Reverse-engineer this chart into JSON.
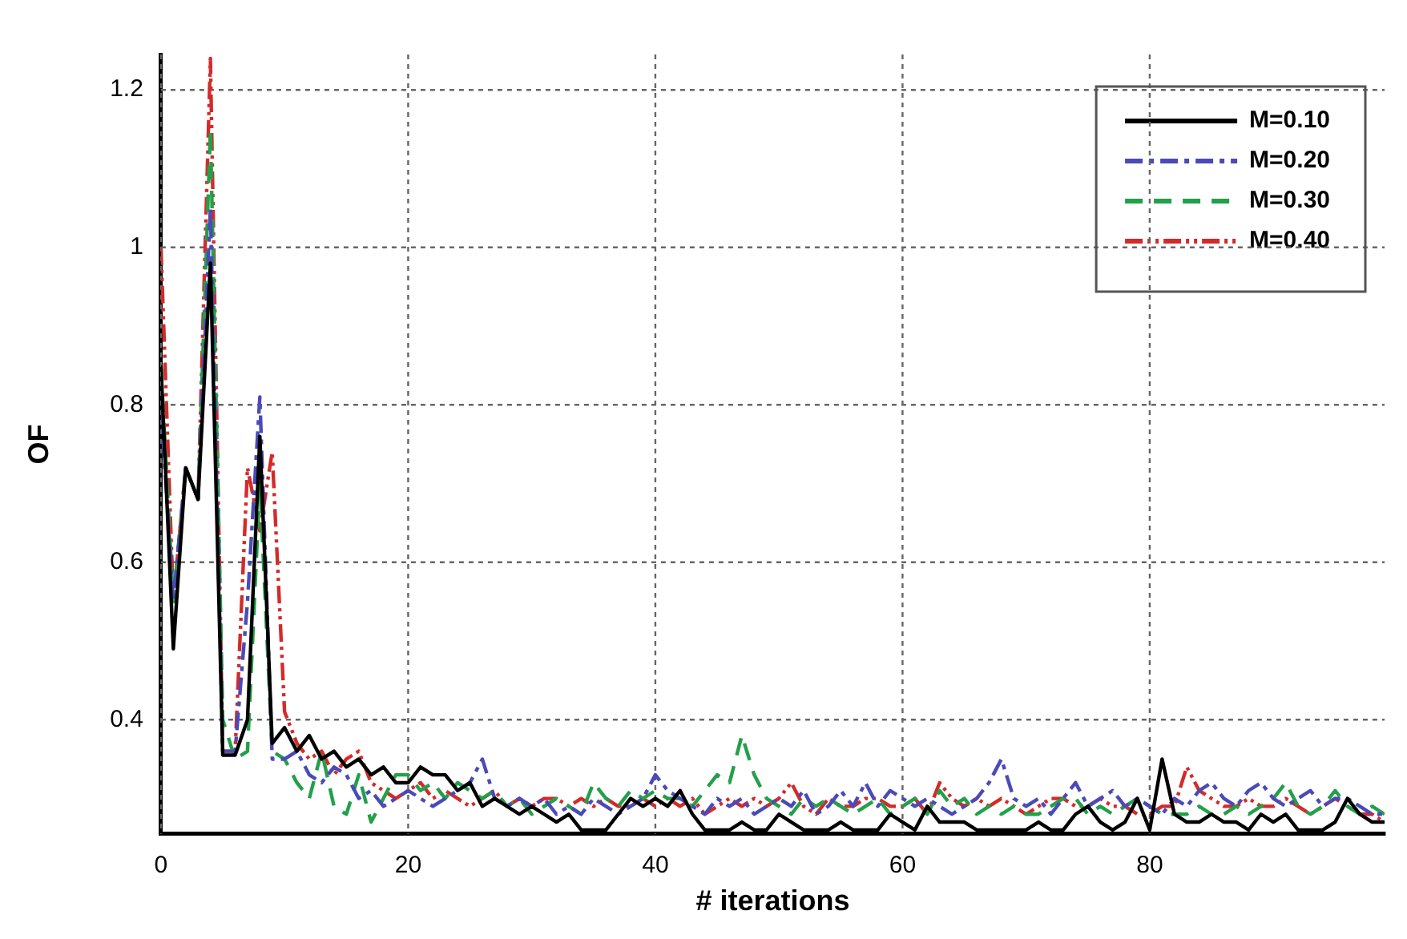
{
  "chart_data": {
    "type": "line",
    "xlabel": "# iterations",
    "ylabel": "OF",
    "x": [
      0,
      1,
      2,
      3,
      4,
      5,
      6,
      7,
      8,
      9,
      10,
      11,
      12,
      13,
      14,
      15,
      16,
      17,
      18,
      19,
      20,
      21,
      22,
      23,
      24,
      25,
      26,
      27,
      28,
      29,
      30,
      31,
      32,
      33,
      34,
      35,
      36,
      37,
      38,
      39,
      40,
      41,
      42,
      43,
      44,
      45,
      46,
      47,
      48,
      49,
      50,
      51,
      52,
      53,
      54,
      55,
      56,
      57,
      58,
      59,
      60,
      61,
      62,
      63,
      64,
      65,
      66,
      67,
      68,
      69,
      70,
      71,
      72,
      73,
      74,
      75,
      76,
      77,
      78,
      79,
      80,
      81,
      82,
      83,
      84,
      85,
      86,
      87,
      88,
      89,
      90,
      91,
      92,
      93,
      94,
      95,
      96,
      97,
      98,
      99
    ],
    "series": [
      {
        "name": "M=0.10",
        "color": "#000000",
        "line_style": "solid",
        "values": [
          0.85,
          0.49,
          0.72,
          0.68,
          0.98,
          0.355,
          0.355,
          0.4,
          0.76,
          0.37,
          0.39,
          0.36,
          0.38,
          0.35,
          0.36,
          0.34,
          0.35,
          0.33,
          0.34,
          0.32,
          0.32,
          0.34,
          0.33,
          0.33,
          0.31,
          0.32,
          0.29,
          0.3,
          0.29,
          0.28,
          0.29,
          0.28,
          0.27,
          0.28,
          0.26,
          0.26,
          0.26,
          0.28,
          0.3,
          0.29,
          0.3,
          0.29,
          0.31,
          0.28,
          0.26,
          0.26,
          0.26,
          0.27,
          0.26,
          0.26,
          0.28,
          0.27,
          0.26,
          0.26,
          0.26,
          0.27,
          0.26,
          0.26,
          0.26,
          0.28,
          0.27,
          0.26,
          0.29,
          0.27,
          0.27,
          0.27,
          0.26,
          0.26,
          0.26,
          0.26,
          0.26,
          0.27,
          0.26,
          0.26,
          0.28,
          0.29,
          0.27,
          0.26,
          0.27,
          0.3,
          0.26,
          0.35,
          0.28,
          0.27,
          0.27,
          0.28,
          0.27,
          0.27,
          0.26,
          0.28,
          0.27,
          0.28,
          0.26,
          0.26,
          0.26,
          0.27,
          0.3,
          0.28,
          0.27,
          0.27
        ]
      },
      {
        "name": "M=0.20",
        "color": "#4a4ab8",
        "line_style": "dashdot",
        "values": [
          0.8,
          0.55,
          0.72,
          0.68,
          1.05,
          0.36,
          0.36,
          0.55,
          0.81,
          0.35,
          0.35,
          0.36,
          0.33,
          0.32,
          0.34,
          0.33,
          0.3,
          0.31,
          0.29,
          0.3,
          0.31,
          0.3,
          0.29,
          0.3,
          0.31,
          0.32,
          0.35,
          0.3,
          0.29,
          0.3,
          0.29,
          0.3,
          0.28,
          0.29,
          0.28,
          0.3,
          0.29,
          0.28,
          0.29,
          0.3,
          0.33,
          0.31,
          0.3,
          0.29,
          0.28,
          0.3,
          0.29,
          0.3,
          0.28,
          0.29,
          0.3,
          0.29,
          0.31,
          0.28,
          0.29,
          0.31,
          0.29,
          0.32,
          0.29,
          0.31,
          0.3,
          0.29,
          0.3,
          0.29,
          0.28,
          0.29,
          0.3,
          0.32,
          0.35,
          0.3,
          0.29,
          0.3,
          0.28,
          0.3,
          0.32,
          0.29,
          0.3,
          0.31,
          0.29,
          0.3,
          0.29,
          0.28,
          0.3,
          0.29,
          0.31,
          0.32,
          0.3,
          0.29,
          0.31,
          0.32,
          0.3,
          0.29,
          0.3,
          0.31,
          0.29,
          0.3,
          0.3,
          0.29,
          0.28,
          0.28
        ]
      },
      {
        "name": "M=0.30",
        "color": "#22a04a",
        "line_style": "dashed",
        "values": [
          0.85,
          0.55,
          0.72,
          0.68,
          1.15,
          0.4,
          0.35,
          0.36,
          0.7,
          0.36,
          0.35,
          0.32,
          0.3,
          0.36,
          0.29,
          0.28,
          0.33,
          0.27,
          0.3,
          0.33,
          0.33,
          0.31,
          0.32,
          0.3,
          0.32,
          0.31,
          0.3,
          0.31,
          0.29,
          0.3,
          0.28,
          0.29,
          0.3,
          0.29,
          0.28,
          0.32,
          0.3,
          0.29,
          0.31,
          0.3,
          0.31,
          0.3,
          0.3,
          0.29,
          0.31,
          0.33,
          0.32,
          0.38,
          0.33,
          0.3,
          0.29,
          0.28,
          0.3,
          0.29,
          0.3,
          0.29,
          0.28,
          0.29,
          0.3,
          0.28,
          0.29,
          0.3,
          0.28,
          0.31,
          0.29,
          0.3,
          0.28,
          0.29,
          0.28,
          0.29,
          0.28,
          0.28,
          0.29,
          0.3,
          0.3,
          0.28,
          0.29,
          0.28,
          0.29,
          0.3,
          0.29,
          0.28,
          0.28,
          0.28,
          0.29,
          0.28,
          0.28,
          0.29,
          0.28,
          0.29,
          0.3,
          0.32,
          0.29,
          0.28,
          0.29,
          0.31,
          0.29,
          0.28,
          0.29,
          0.28
        ]
      },
      {
        "name": "M=0.40",
        "color": "#d42a2a",
        "line_style": "dashdotdot",
        "values": [
          1.0,
          0.55,
          0.72,
          0.68,
          1.24,
          0.36,
          0.36,
          0.72,
          0.64,
          0.74,
          0.41,
          0.37,
          0.35,
          0.36,
          0.33,
          0.35,
          0.36,
          0.32,
          0.31,
          0.3,
          0.31,
          0.32,
          0.3,
          0.31,
          0.3,
          0.29,
          0.3,
          0.31,
          0.29,
          0.3,
          0.29,
          0.3,
          0.3,
          0.29,
          0.3,
          0.29,
          0.3,
          0.29,
          0.29,
          0.3,
          0.29,
          0.3,
          0.29,
          0.3,
          0.28,
          0.29,
          0.3,
          0.29,
          0.3,
          0.29,
          0.3,
          0.32,
          0.29,
          0.28,
          0.3,
          0.29,
          0.29,
          0.3,
          0.3,
          0.29,
          0.29,
          0.3,
          0.28,
          0.32,
          0.3,
          0.29,
          0.3,
          0.29,
          0.3,
          0.29,
          0.28,
          0.29,
          0.3,
          0.3,
          0.29,
          0.29,
          0.3,
          0.29,
          0.29,
          0.28,
          0.28,
          0.29,
          0.29,
          0.34,
          0.31,
          0.3,
          0.29,
          0.29,
          0.3,
          0.29,
          0.29,
          0.3,
          0.29,
          0.28,
          0.29,
          0.3,
          0.29,
          0.28,
          0.28,
          0.27
        ]
      }
    ],
    "xlim": [
      0,
      99
    ],
    "xticks": [
      0,
      20,
      40,
      60,
      80
    ],
    "ylim": [
      0.255,
      1.245
    ],
    "yticks": [
      0.4,
      0.6,
      0.8,
      1,
      1.2
    ],
    "grid": true,
    "legend": "top right",
    "marker": "none"
  }
}
